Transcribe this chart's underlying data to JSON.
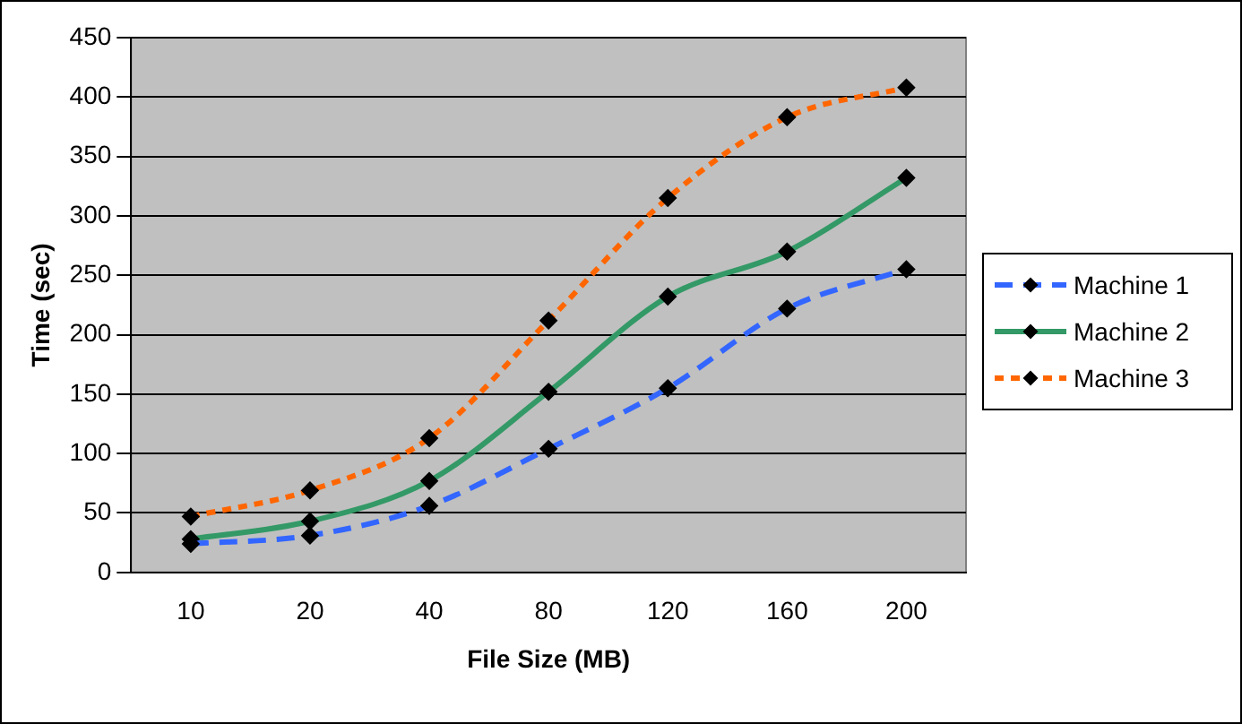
{
  "chart_data": {
    "type": "line",
    "xlabel": "File Size (MB)",
    "ylabel": "Time (sec)",
    "categories": [
      "10",
      "20",
      "40",
      "80",
      "120",
      "160",
      "200"
    ],
    "series": [
      {
        "name": "Machine 1",
        "color": "#3366ff",
        "values": [
          24,
          31,
          56,
          104,
          155,
          222,
          255
        ],
        "line_style": "dashed"
      },
      {
        "name": "Machine 2",
        "color": "#339966",
        "values": [
          28,
          43,
          77,
          152,
          232,
          270,
          332
        ],
        "line_style": "solid"
      },
      {
        "name": "Machine 3",
        "color": "#ff6600",
        "values": [
          47,
          69,
          113,
          212,
          315,
          383,
          408
        ],
        "line_style": "dotted"
      }
    ],
    "ylim": [
      0,
      450
    ],
    "yticks": [
      0,
      50,
      100,
      150,
      200,
      250,
      300,
      350,
      400,
      450
    ],
    "grid": "y",
    "legend": "right",
    "marker": "diamond"
  }
}
